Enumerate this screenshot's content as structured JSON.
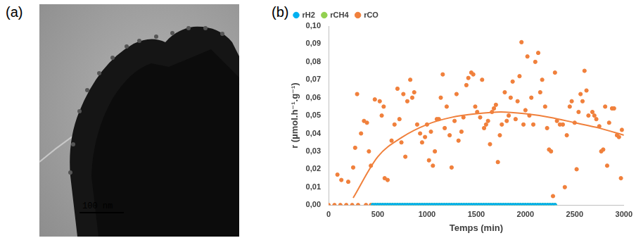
{
  "image": {
    "panel": "(a)",
    "scale_bar": "100 nm"
  },
  "chart_data": {
    "type": "scatter",
    "panel": "(b)",
    "x_label": "Temps (min)",
    "y_label": "r (µmol.h⁻¹.g⁻¹)",
    "xlim": [
      0,
      3000
    ],
    "xticks": [
      0,
      500,
      1000,
      1500,
      2000,
      2500,
      3000
    ],
    "ylim": [
      0,
      0.1
    ],
    "yticks": [
      {
        "value": 0,
        "label": "0,00"
      },
      {
        "value": 0.01,
        "label": "0,01"
      },
      {
        "value": 0.02,
        "label": "0,02"
      },
      {
        "value": 0.03,
        "label": "0,03"
      },
      {
        "value": 0.04,
        "label": "0,04"
      },
      {
        "value": 0.05,
        "label": "0,05"
      },
      {
        "value": 0.06,
        "label": "0,06"
      },
      {
        "value": 0.07,
        "label": "0,07"
      },
      {
        "value": 0.08,
        "label": "0,08"
      },
      {
        "value": 0.09,
        "label": "0,09"
      },
      {
        "value": 0.1,
        "label": "0,10"
      }
    ],
    "grid": false,
    "legend": "top-left",
    "series": [
      {
        "name": "rH2",
        "color": "#00b0f0",
        "marker": "circle",
        "x": [
          450,
          475,
          500,
          525,
          550,
          575,
          600,
          625,
          650,
          675,
          700,
          725,
          750,
          775,
          800,
          825,
          850,
          875,
          900,
          925,
          950,
          975,
          1000,
          1025,
          1050,
          1075,
          1100,
          1125,
          1150,
          1175,
          1200,
          1225,
          1250,
          1275,
          1300,
          1325,
          1350,
          1375,
          1400,
          1425,
          1450,
          1475,
          1500,
          1525,
          1550,
          1575,
          1600,
          1625,
          1650,
          1675,
          1700,
          1725,
          1750,
          1775,
          1800,
          1825,
          1850,
          1875,
          1900,
          1925,
          1950,
          1975,
          2000,
          2025,
          2050,
          2075,
          2100,
          2125,
          2150,
          2175,
          2200,
          2225,
          2250,
          2275,
          2300
        ],
        "values": [
          0,
          0,
          0,
          0,
          0,
          0,
          0,
          0,
          0,
          0,
          0,
          0,
          0,
          0,
          0,
          0,
          0,
          0,
          0,
          0,
          0,
          0,
          0,
          0,
          0,
          0,
          0,
          0,
          0,
          0,
          0,
          0,
          0,
          0,
          0,
          0,
          0,
          0,
          0,
          0,
          0,
          0,
          0,
          0,
          0,
          0,
          0,
          0,
          0,
          0,
          0,
          0,
          0,
          0,
          0,
          0,
          0,
          0,
          0,
          0,
          0,
          0,
          0,
          0,
          0,
          0,
          0,
          0,
          0,
          0,
          0,
          0,
          0,
          0,
          0
        ]
      },
      {
        "name": "rCH4",
        "color": "#92d050",
        "marker": "circle",
        "x": [
          450,
          475,
          500,
          525,
          550,
          575,
          600,
          625,
          650,
          675,
          700,
          725,
          750,
          775,
          800,
          825,
          850,
          875,
          900,
          925,
          950,
          975,
          1000,
          1025,
          1050,
          1075,
          1100,
          1125,
          1150,
          1175,
          1200,
          1225,
          1250,
          1275,
          1300,
          1325,
          1350,
          1375,
          1400,
          1425,
          1450,
          1475,
          1500,
          1525,
          1550,
          1575,
          1600,
          1625,
          1650,
          1675,
          1700,
          1725,
          1750,
          1775,
          1800,
          1825,
          1850,
          1875,
          1900,
          1925,
          1950,
          1975,
          2000,
          2025,
          2050,
          2075,
          2100,
          2125,
          2150,
          2175,
          2200,
          2225,
          2250,
          2275,
          2300
        ],
        "values": [
          0,
          0,
          0,
          0,
          0,
          0,
          0,
          0,
          0,
          0,
          0,
          0,
          0,
          0,
          0,
          0,
          0,
          0,
          0,
          0,
          0,
          0,
          0,
          0,
          0,
          0,
          0,
          0,
          0,
          0,
          0,
          0,
          0,
          0,
          0,
          0,
          0,
          0,
          0,
          0,
          0,
          0,
          0,
          0,
          0,
          0,
          0,
          0,
          0,
          0,
          0,
          0,
          0,
          0,
          0,
          0,
          0,
          0,
          0,
          0,
          0,
          0,
          0,
          0,
          0,
          0,
          0,
          0,
          0,
          0,
          0,
          0,
          0,
          0,
          0
        ]
      },
      {
        "name": "rCO",
        "color": "#f0803c",
        "marker": "circle",
        "x": [
          0,
          60,
          120,
          180,
          240,
          300,
          380,
          430,
          90,
          130,
          200,
          250,
          270,
          290,
          330,
          360,
          390,
          410,
          430,
          470,
          520,
          540,
          560,
          570,
          600,
          640,
          670,
          700,
          720,
          740,
          760,
          780,
          800,
          830,
          850,
          870,
          900,
          930,
          950,
          980,
          1000,
          1020,
          1040,
          1060,
          1080,
          1100,
          1120,
          1140,
          1160,
          1180,
          1200,
          1230,
          1250,
          1280,
          1300,
          1320,
          1350,
          1370,
          1400,
          1420,
          1450,
          1470,
          1490,
          1510,
          1540,
          1560,
          1580,
          1600,
          1620,
          1640,
          1660,
          1680,
          1700,
          1720,
          1740,
          1760,
          1790,
          1810,
          1830,
          1850,
          1870,
          1900,
          1920,
          1940,
          1960,
          1980,
          2000,
          2020,
          2040,
          2060,
          2080,
          2100,
          2130,
          2150,
          2170,
          2200,
          2220,
          2240,
          2260,
          2280,
          2300,
          2320,
          2350,
          2380,
          2400,
          2420,
          2450,
          2470,
          2500,
          2520,
          2540,
          2560,
          2580,
          2600,
          2620,
          2640,
          2680,
          2700,
          2720,
          2750,
          2770,
          2790,
          2810,
          2830,
          2850,
          2880,
          2900,
          2930,
          2950,
          2970,
          2980
        ],
        "values": [
          0,
          0,
          0,
          0,
          0,
          0,
          0,
          0,
          0.017,
          0.014,
          0.013,
          0.021,
          0.032,
          0.062,
          0.04,
          0.047,
          0.046,
          0.03,
          0.022,
          0.059,
          0.058,
          0.05,
          0.055,
          0.015,
          0.014,
          0.036,
          0.045,
          0.065,
          0.048,
          0.035,
          0.062,
          0.027,
          0.058,
          0.07,
          0.06,
          0.063,
          0.045,
          0.04,
          0.035,
          0.038,
          0.045,
          0.025,
          0.041,
          0.022,
          0.03,
          0.048,
          0.048,
          0.06,
          0.073,
          0.043,
          0.055,
          0.039,
          0.021,
          0.047,
          0.062,
          0.036,
          0.041,
          0.049,
          0.067,
          0.071,
          0.074,
          0.073,
          0.055,
          0.052,
          0.049,
          0.07,
          0.043,
          0.045,
          0.047,
          0.034,
          0.052,
          0.054,
          0.056,
          0.024,
          0.039,
          0.045,
          0.063,
          0.047,
          0.05,
          0.06,
          0.069,
          0.048,
          0.058,
          0.072,
          0.091,
          0.045,
          0.053,
          0.083,
          0.05,
          0.06,
          0.045,
          0.08,
          0.085,
          0.063,
          0.07,
          0.055,
          0.043,
          0.031,
          0.03,
          0.005,
          0.074,
          0.047,
          0.045,
          0.045,
          0.01,
          0.039,
          0.055,
          0.058,
          0.046,
          0.02,
          0.052,
          0.062,
          0.058,
          0.075,
          0.064,
          0.05,
          0.052,
          0.05,
          0.048,
          0.044,
          0.03,
          0.031,
          0.055,
          0.022,
          0.046,
          0.054,
          0.054,
          0.039,
          0.038,
          0.015,
          0.042
        ],
        "trend": {
          "x": [
            250,
            500,
            750,
            1000,
            1250,
            1500,
            1750,
            2000,
            2250,
            2500,
            2750,
            3000
          ],
          "values": [
            0.004,
            0.027,
            0.038,
            0.045,
            0.049,
            0.051,
            0.052,
            0.051,
            0.049,
            0.046,
            0.043,
            0.039
          ]
        }
      }
    ]
  }
}
